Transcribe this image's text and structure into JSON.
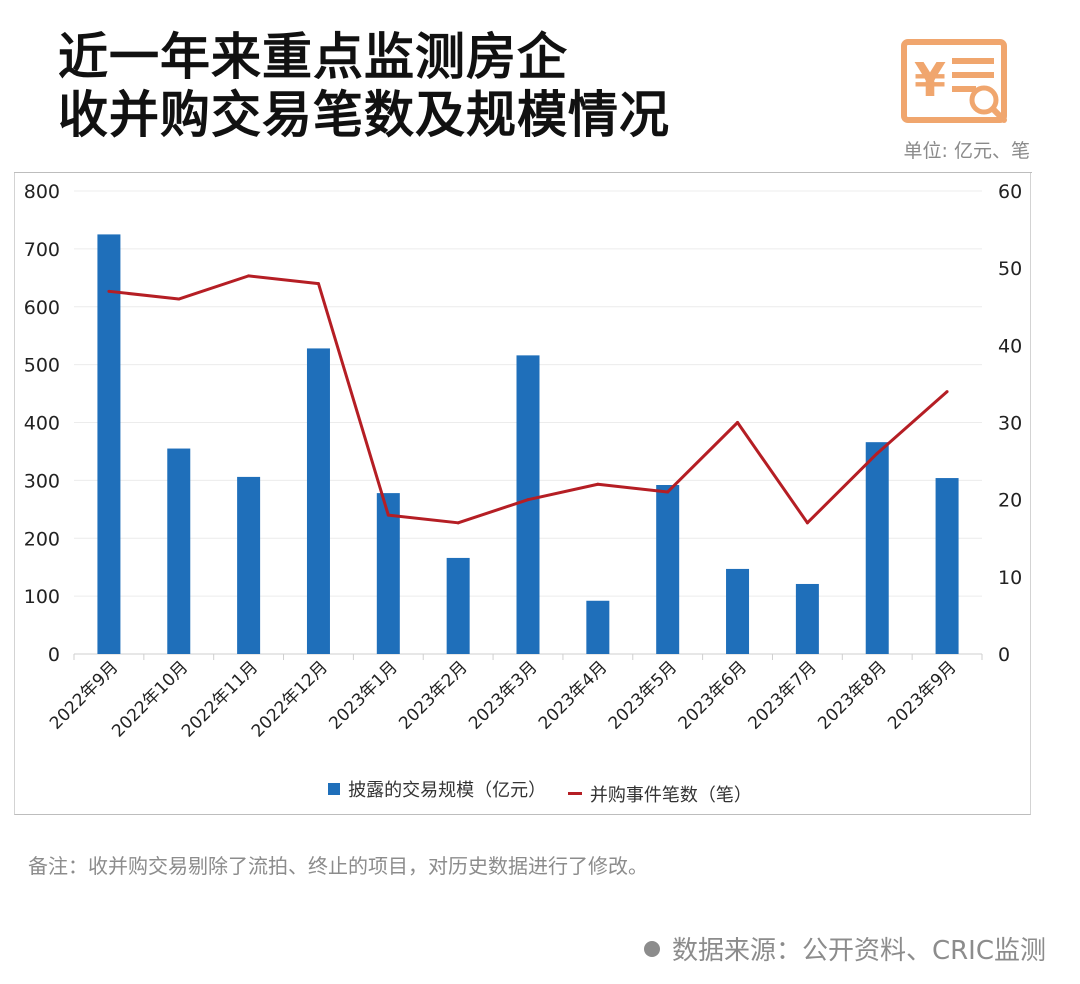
{
  "title_lines": [
    "近一年来重点监测房企",
    "收并购交易笔数及规模情况"
  ],
  "unit_label": "单位: 亿元、笔",
  "note": "备注：收并购交易剔除了流拍、终止的项目，对历史数据进行了修改。",
  "source": "数据来源：公开资料、CRIC监测",
  "logo": {
    "icon": "receipt-search-icon",
    "color": "#f0a66e"
  },
  "colors": {
    "bar": "#1f6fba",
    "line": "#b51e24"
  },
  "chart_data": {
    "type": "bar-line",
    "categories": [
      "2022年9月",
      "2022年10月",
      "2022年11月",
      "2022年12月",
      "2023年1月",
      "2023年2月",
      "2023年3月",
      "2023年4月",
      "2023年5月",
      "2023年6月",
      "2023年7月",
      "2023年8月",
      "2023年9月"
    ],
    "series": [
      {
        "name": "披露的交易规模（亿元）",
        "type": "bar",
        "axis": "left",
        "values": [
          725,
          355,
          306,
          528,
          278,
          166,
          516,
          92,
          292,
          147,
          121,
          366,
          304
        ]
      },
      {
        "name": "并购事件笔数（笔）",
        "type": "line",
        "axis": "right",
        "values": [
          47,
          46,
          49,
          48,
          18,
          17,
          20,
          22,
          21,
          30,
          17,
          26,
          34
        ]
      }
    ],
    "y_left": {
      "min": 0,
      "max": 800,
      "ticks": [
        0,
        100,
        200,
        300,
        400,
        500,
        600,
        700,
        800
      ]
    },
    "y_right": {
      "min": 0,
      "max": 60,
      "ticks": [
        0,
        10,
        20,
        30,
        40,
        50,
        60
      ]
    },
    "grid": true,
    "legend_position": "bottom"
  }
}
